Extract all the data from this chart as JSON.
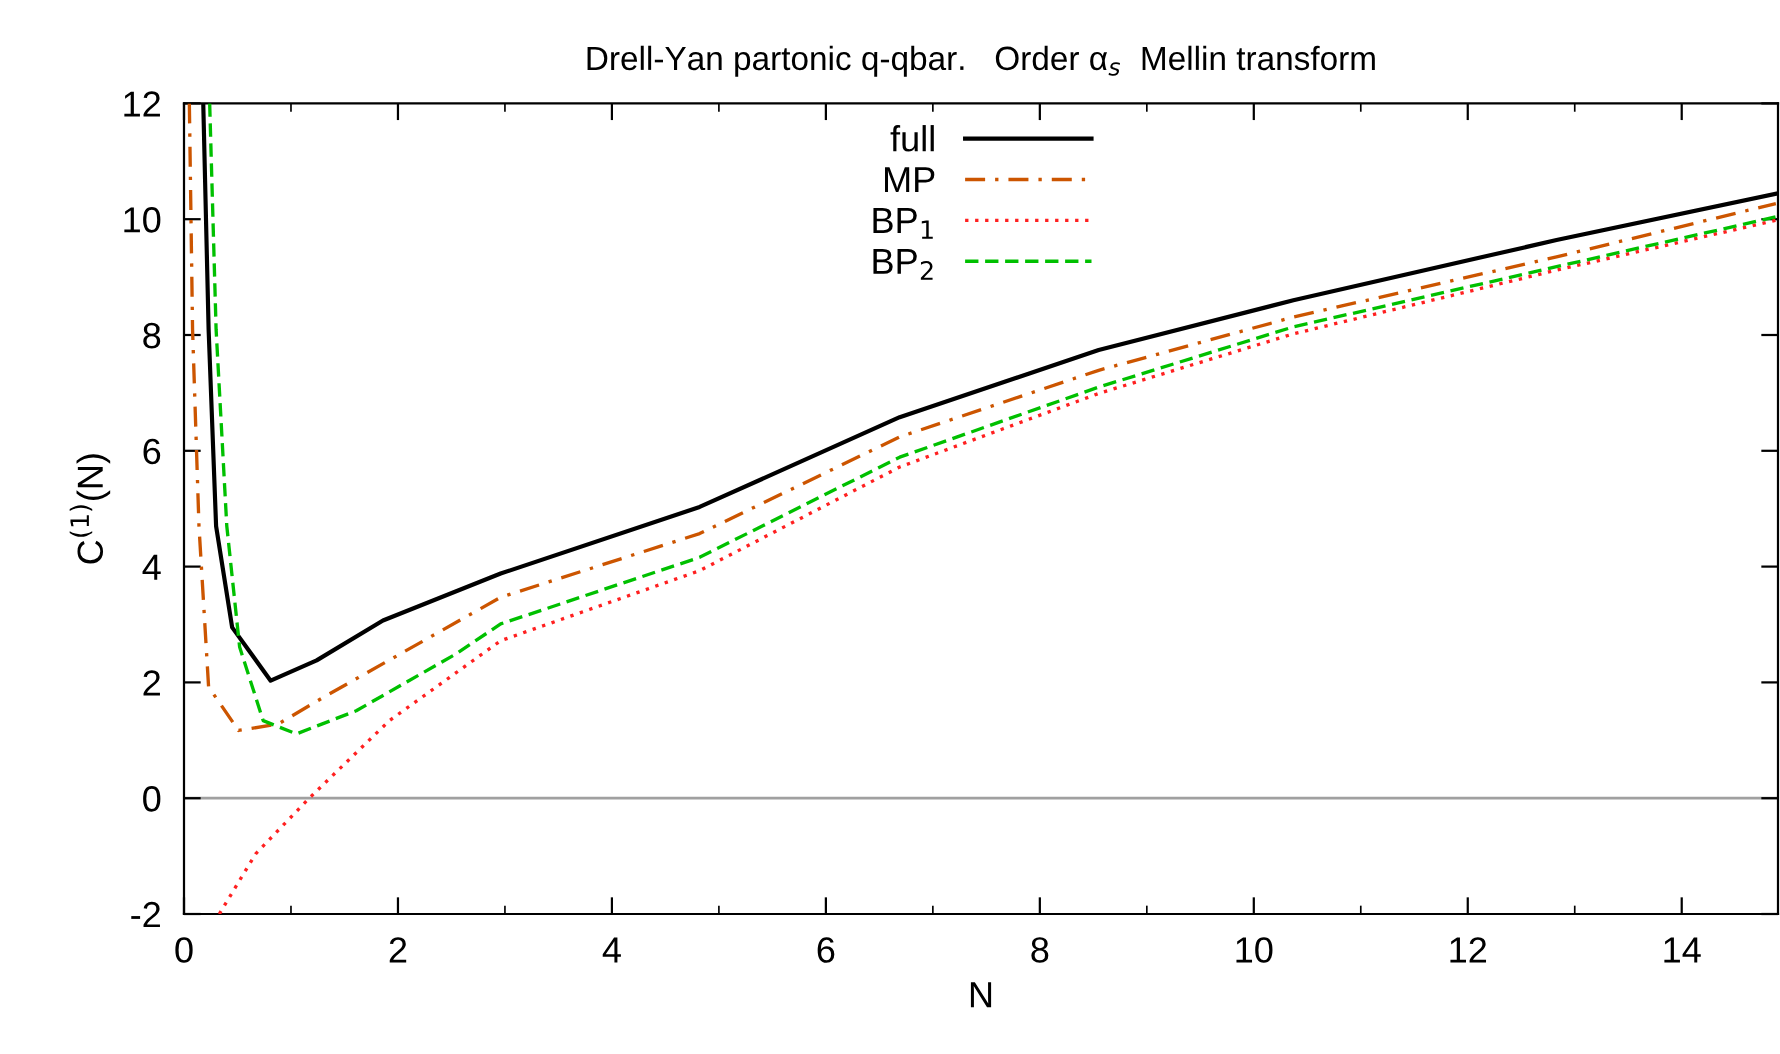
{
  "chart_data": {
    "type": "line",
    "title": "Drell-Yan partonic q-qbar.   Order α$_{s}$  Mellin transform",
    "xlabel": "N",
    "ylabel": "C$^{(1)}$(N)",
    "xlim": [
      0,
      14.9
    ],
    "ylim": [
      -2,
      12
    ],
    "xticks": [
      0,
      {
        "value": 1,
        "label": null
      },
      2,
      {
        "value": 3,
        "label": null
      },
      4,
      {
        "value": 5,
        "label": null
      },
      6,
      {
        "value": 7,
        "label": null
      },
      8,
      {
        "value": 9,
        "label": null
      },
      10,
      {
        "value": 11,
        "label": null
      },
      12,
      {
        "value": 13,
        "label": null
      },
      14
    ],
    "yticks": [
      -2,
      0,
      2,
      4,
      6,
      8,
      10,
      12
    ],
    "grid": false,
    "legend": "top",
    "marker": "none",
    "ref_lines": [
      {
        "axis": "y",
        "value": 0,
        "color": "#a0a0a0",
        "line_style": "solid"
      }
    ],
    "series": [
      {
        "name": "full",
        "color": "#000000",
        "line_style": "solid",
        "x": [
          0.18,
          0.23,
          0.3,
          0.45,
          0.81,
          1.24,
          1.86,
          2.96,
          4.82,
          6.69,
          8.55,
          10.37,
          12.83,
          14.88
        ],
        "values": [
          12,
          8.1,
          4.7,
          2.95,
          2.03,
          2.38,
          3.07,
          3.88,
          5.03,
          6.58,
          7.74,
          8.6,
          9.64,
          10.44
        ]
      },
      {
        "name": "MP",
        "color": "#cc5500",
        "line_style": "dashdot",
        "x": [
          0.05,
          0.08,
          0.14,
          0.23,
          0.51,
          0.88,
          1.31,
          2.24,
          2.96,
          4.82,
          6.69,
          8.55,
          10.37,
          12.83,
          14.88
        ],
        "values": [
          12,
          8.1,
          4.7,
          1.92,
          1.17,
          1.28,
          1.75,
          2.72,
          3.47,
          4.57,
          6.24,
          7.39,
          8.31,
          9.35,
          10.27
        ]
      },
      {
        "name": "BP$_{1}$",
        "color": "#ff2020",
        "line_style": "dotted",
        "x": [
          0.33,
          0.67,
          1.17,
          1.92,
          2.96,
          4.82,
          6.69,
          8.55,
          10.37,
          12.83,
          14.88
        ],
        "values": [
          -2,
          -0.96,
          0,
          1.34,
          2.72,
          3.93,
          5.72,
          6.99,
          8.02,
          9.12,
          9.98
        ]
      },
      {
        "name": "BP$_{2}$",
        "color": "#00c000",
        "line_style": "dashed",
        "x": [
          0.24,
          0.3,
          0.4,
          0.52,
          0.74,
          1.05,
          1.61,
          2.54,
          2.96,
          4.82,
          6.69,
          8.55,
          10.37,
          12.83,
          14.88
        ],
        "values": [
          12,
          8.1,
          4.7,
          2.61,
          1.34,
          1.11,
          1.51,
          2.49,
          3.01,
          4.16,
          5.89,
          7.1,
          8.14,
          9.18,
          10.04
        ]
      }
    ]
  }
}
